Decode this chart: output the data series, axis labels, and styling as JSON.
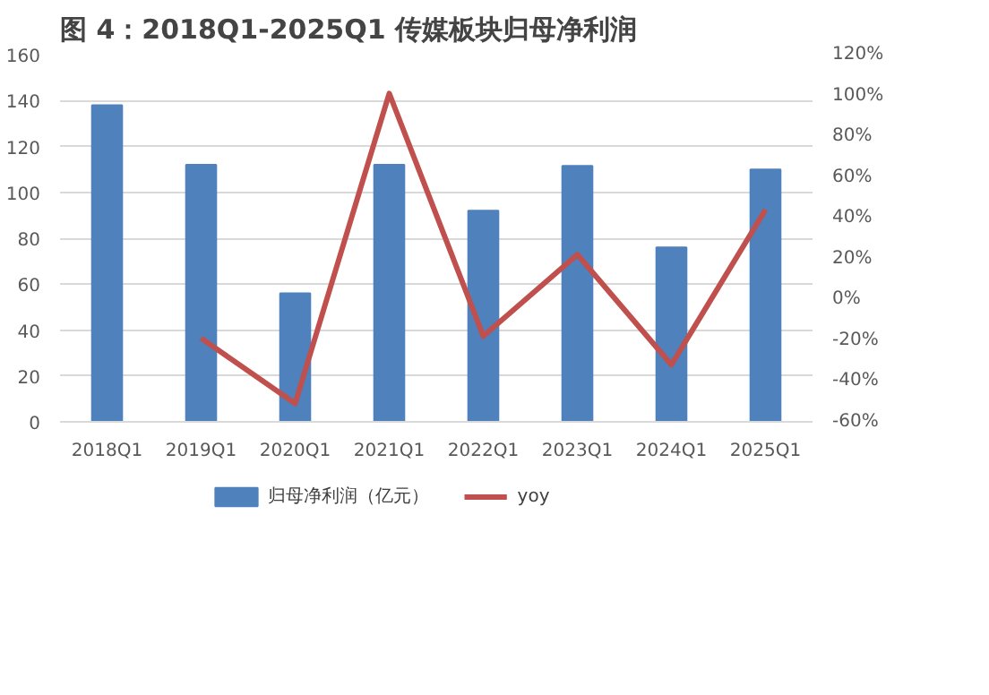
{
  "chart_data": {
    "type": "bar",
    "title": "图 4：2018Q1-2025Q1 传媒板块归母净利润",
    "categories": [
      "2018Q1",
      "2019Q1",
      "2020Q1",
      "2021Q1",
      "2022Q1",
      "2023Q1",
      "2024Q1",
      "2025Q1"
    ],
    "series": [
      {
        "name": "归母净利润（亿元）",
        "color": "#4f81bd",
        "values": [
          138,
          112,
          56,
          112,
          92,
          111.5,
          76,
          110
        ]
      },
      {
        "name": "yoy",
        "type": "line",
        "axis": "y2",
        "color": "#c0504d",
        "values": [
          null,
          -19,
          -51,
          101,
          -18,
          22,
          -32,
          44
        ]
      }
    ],
    "ylim": [
      0,
      160
    ],
    "yticks": [
      0,
      20,
      40,
      60,
      80,
      100,
      120,
      140,
      160
    ],
    "y2lim": [
      -60,
      120
    ],
    "y2ticks": [
      {
        "value": -60,
        "label": "-60%"
      },
      {
        "value": -40,
        "label": "-40%"
      },
      {
        "value": -20,
        "label": "-20%"
      },
      {
        "value": 0,
        "label": "0%"
      },
      {
        "value": 20,
        "label": "20%"
      },
      {
        "value": 40,
        "label": "40%"
      },
      {
        "value": 60,
        "label": "60%"
      },
      {
        "value": 80,
        "label": "80%"
      },
      {
        "value": 100,
        "label": "100%"
      },
      {
        "value": 120,
        "label": "120%"
      }
    ],
    "grid": "y",
    "legend": "bottom",
    "marker": "none",
    "line_style": "solid"
  }
}
